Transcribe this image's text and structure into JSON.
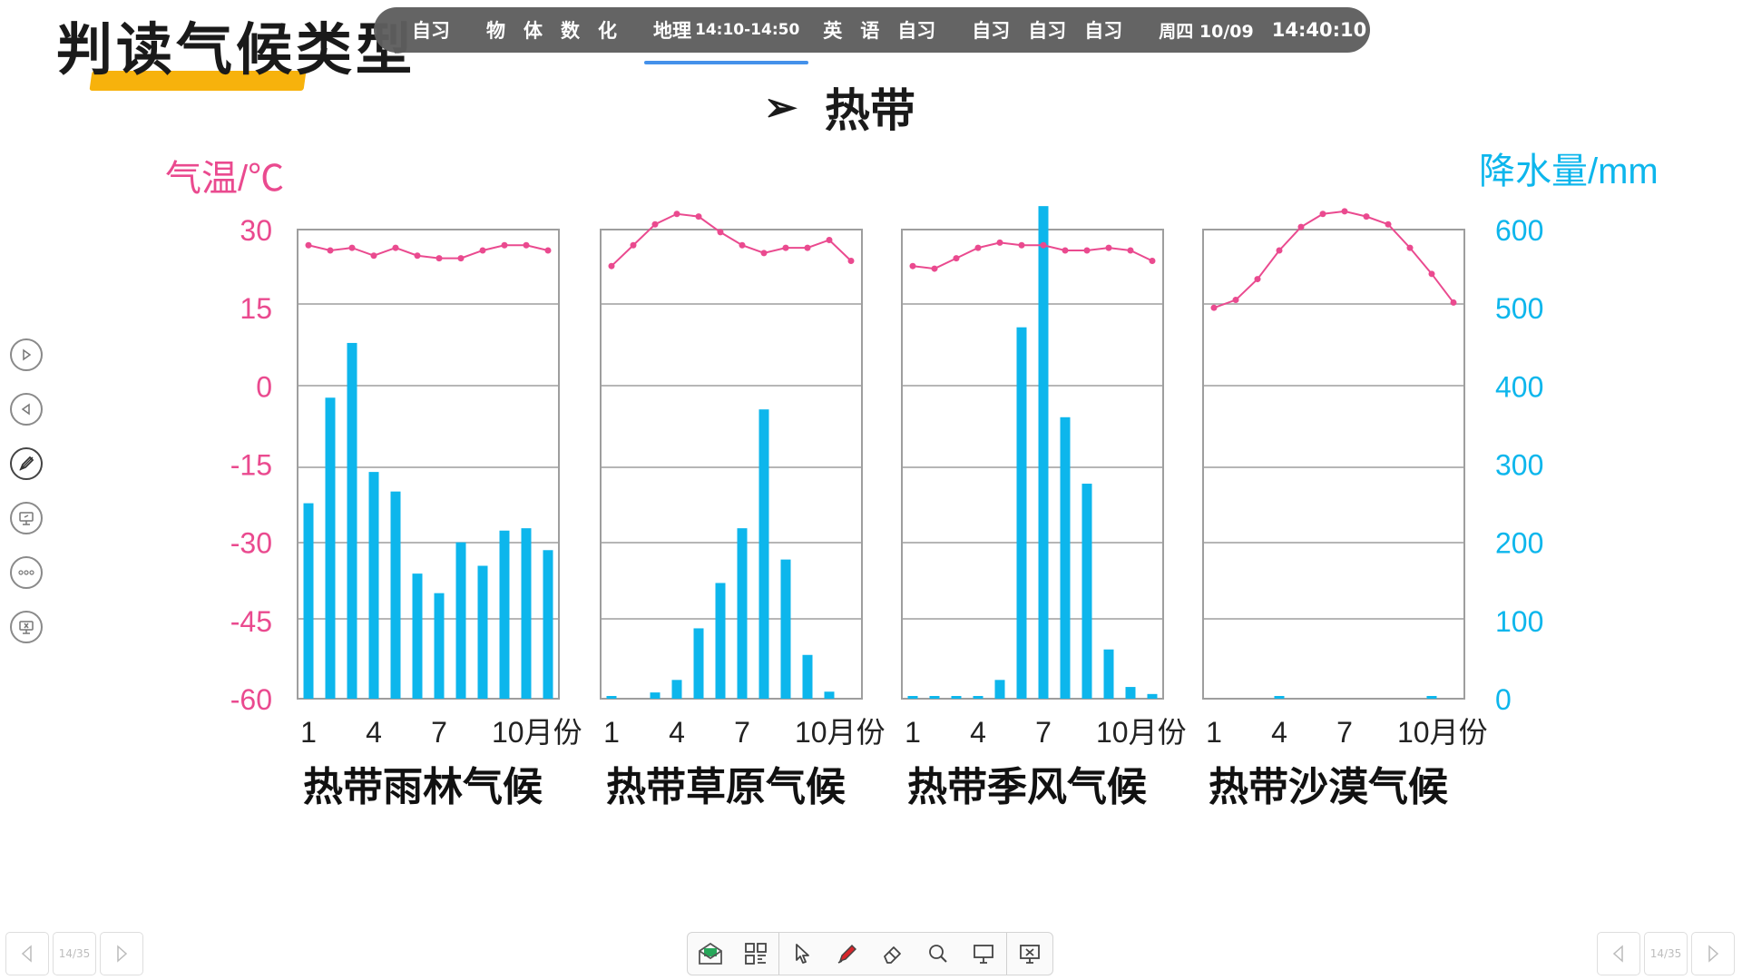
{
  "slide": {
    "title": "判读气候类型",
    "heading_arrow": "➢",
    "heading": "热带"
  },
  "schedule_bar": {
    "items": [
      "自习",
      "物",
      "体",
      "数",
      "化",
      "地理",
      "14:10-14:50",
      "英",
      "语",
      "自习",
      "自习",
      "自习",
      "自习",
      "周四 10/09",
      "14:40:10"
    ]
  },
  "colors": {
    "temperature": "#ea4a8f",
    "precipitation": "#0db6ec",
    "title_underline": "#f7b20c",
    "schedule_active": "#3d8dea"
  },
  "axes": {
    "left_label": "气温/℃",
    "right_label": "降水量/mm",
    "left_ticks": [
      "30",
      "15",
      "0",
      "-15",
      "-30",
      "-45",
      "-60"
    ],
    "right_ticks": [
      "600",
      "500",
      "400",
      "300",
      "200",
      "100",
      "0"
    ],
    "x_ticks": [
      "1",
      "4",
      "7",
      "10月份"
    ]
  },
  "chart_data": [
    {
      "type": "bar+line",
      "title": "热带雨林气候",
      "xlabel": "月份",
      "ylabel_left": "气温/℃",
      "ylabel_right": "降水量/mm",
      "ylim_temp": [
        -60,
        30
      ],
      "ylim_precip": [
        0,
        600
      ],
      "months": [
        1,
        2,
        3,
        4,
        5,
        6,
        7,
        8,
        9,
        10,
        11,
        12
      ],
      "temperature": [
        27,
        26,
        26.5,
        25,
        26.5,
        25,
        24.5,
        24.5,
        26,
        27,
        27,
        26
      ],
      "precipitation": [
        250,
        385,
        455,
        290,
        265,
        160,
        135,
        200,
        170,
        215,
        218,
        190
      ]
    },
    {
      "type": "bar+line",
      "title": "热带草原气候",
      "xlabel": "月份",
      "ylabel_left": "气温/℃",
      "ylabel_right": "降水量/mm",
      "ylim_temp": [
        -60,
        30
      ],
      "ylim_precip": [
        0,
        600
      ],
      "months": [
        1,
        2,
        3,
        4,
        5,
        6,
        7,
        8,
        9,
        10,
        11,
        12
      ],
      "temperature": [
        23,
        27,
        31,
        33,
        32.5,
        29.5,
        27,
        25.5,
        26.5,
        26.5,
        28,
        24
      ],
      "precipitation": [
        3,
        0,
        8,
        24,
        90,
        148,
        218,
        370,
        178,
        56,
        9,
        0
      ]
    },
    {
      "type": "bar+line",
      "title": "热带季风气候",
      "xlabel": "月份",
      "ylabel_left": "气温/℃",
      "ylabel_right": "降水量/mm",
      "ylim_temp": [
        -60,
        30
      ],
      "ylim_precip": [
        0,
        600
      ],
      "months": [
        1,
        2,
        3,
        4,
        5,
        6,
        7,
        8,
        9,
        10,
        11,
        12
      ],
      "temperature": [
        23,
        22.5,
        24.5,
        26.5,
        27.5,
        27,
        27,
        26,
        26,
        26.5,
        26,
        24
      ],
      "precipitation": [
        3,
        3,
        3,
        3,
        24,
        475,
        630,
        360,
        275,
        63,
        15,
        6
      ]
    },
    {
      "type": "bar+line",
      "title": "热带沙漠气候",
      "xlabel": "月份",
      "ylabel_left": "气温/℃",
      "ylabel_right": "降水量/mm",
      "ylim_temp": [
        -60,
        30
      ],
      "ylim_precip": [
        0,
        600
      ],
      "months": [
        1,
        2,
        3,
        4,
        5,
        6,
        7,
        8,
        9,
        10,
        11,
        12
      ],
      "temperature": [
        15,
        16.5,
        20.5,
        26,
        30.5,
        33,
        33.5,
        32.5,
        31,
        26.5,
        21.5,
        16
      ],
      "precipitation": [
        0,
        0,
        0,
        3,
        0,
        0,
        0,
        0,
        0,
        0,
        3,
        0
      ]
    }
  ],
  "side_tools": [
    {
      "name": "play-forward-icon"
    },
    {
      "name": "play-back-icon"
    },
    {
      "name": "pen-icon"
    },
    {
      "name": "screen-annotate-icon"
    },
    {
      "name": "more-icon"
    },
    {
      "name": "exit-screen-icon"
    }
  ],
  "bottom_toolbar": {
    "tools": [
      "mail-icon",
      "qr-code-icon",
      "pointer-icon",
      "marker-icon",
      "eraser-icon",
      "zoom-icon",
      "whiteboard-icon",
      "close-screen-icon"
    ]
  },
  "pagination": {
    "left_page": "14/35",
    "right_page": "14/35"
  }
}
